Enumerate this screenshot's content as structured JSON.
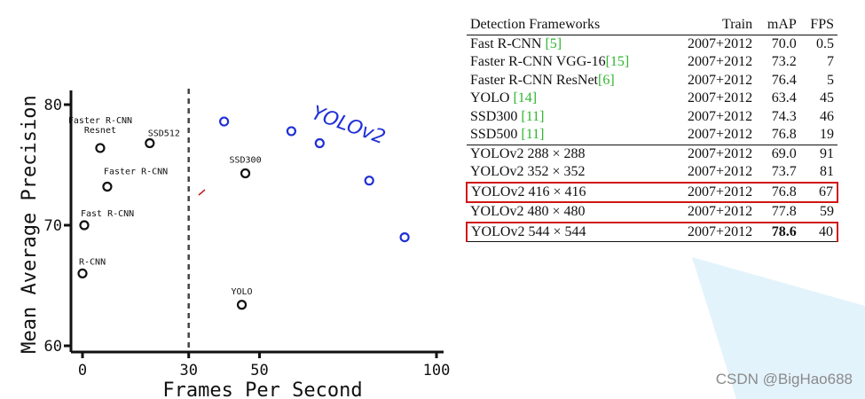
{
  "chart_data": {
    "type": "scatter",
    "ylabel": "Mean Average Precision",
    "xlabel": "Frames Per Second",
    "xlim": [
      0,
      100
    ],
    "ylim": [
      60,
      80
    ],
    "xticks": [
      0,
      30,
      50,
      100
    ],
    "yticks": [
      60,
      70,
      80
    ],
    "reference_line_x": 30,
    "grid": false,
    "annotation": "YOLOv2",
    "series": [
      {
        "color": "#111111",
        "points": [
          {
            "x": 0.5,
            "y": 70.0,
            "label": "Fast R-CNN"
          },
          {
            "x": 0,
            "y": 66.0,
            "label": "R-CNN"
          },
          {
            "x": 7,
            "y": 73.2,
            "label": "Faster R-CNN"
          },
          {
            "x": 5,
            "y": 76.4,
            "label": "Faster R-CNN\nResnet"
          },
          {
            "x": 19,
            "y": 76.8,
            "label": "SSD512"
          },
          {
            "x": 46,
            "y": 74.3,
            "label": "SSD300"
          },
          {
            "x": 45,
            "y": 63.4,
            "label": "YOLO"
          }
        ]
      },
      {
        "color": "#1f2fd6",
        "points": [
          {
            "x": 40,
            "y": 78.6
          },
          {
            "x": 59,
            "y": 77.8
          },
          {
            "x": 67,
            "y": 76.8
          },
          {
            "x": 81,
            "y": 73.7
          },
          {
            "x": 91,
            "y": 69.0
          }
        ]
      }
    ]
  },
  "table": {
    "headers": [
      "Detection Frameworks",
      "Train",
      "mAP",
      "FPS"
    ],
    "rows": [
      {
        "name": "Fast R-CNN ",
        "cite": "[5]",
        "train": "2007+2012",
        "map": "70.0",
        "fps": "0.5",
        "group_start": false,
        "highlight": false,
        "bold_map": false
      },
      {
        "name": "Faster R-CNN VGG-16",
        "cite": "[15]",
        "train": "2007+2012",
        "map": "73.2",
        "fps": "7",
        "group_start": false,
        "highlight": false,
        "bold_map": false
      },
      {
        "name": "Faster R-CNN ResNet",
        "cite": "[6]",
        "train": "2007+2012",
        "map": "76.4",
        "fps": "5",
        "group_start": false,
        "highlight": false,
        "bold_map": false
      },
      {
        "name": "YOLO ",
        "cite": "[14]",
        "train": "2007+2012",
        "map": "63.4",
        "fps": "45",
        "group_start": false,
        "highlight": false,
        "bold_map": false
      },
      {
        "name": "SSD300 ",
        "cite": "[11]",
        "train": "2007+2012",
        "map": "74.3",
        "fps": "46",
        "group_start": false,
        "highlight": false,
        "bold_map": false
      },
      {
        "name": "SSD500 ",
        "cite": "[11]",
        "train": "2007+2012",
        "map": "76.8",
        "fps": "19",
        "group_start": false,
        "highlight": false,
        "bold_map": false
      },
      {
        "name": "YOLOv2 288 × 288",
        "cite": "",
        "train": "2007+2012",
        "map": "69.0",
        "fps": "91",
        "group_start": true,
        "highlight": false,
        "bold_map": false
      },
      {
        "name": "YOLOv2 352 × 352",
        "cite": "",
        "train": "2007+2012",
        "map": "73.7",
        "fps": "81",
        "group_start": false,
        "highlight": false,
        "bold_map": false
      },
      {
        "name": "YOLOv2 416 × 416",
        "cite": "",
        "train": "2007+2012",
        "map": "76.8",
        "fps": "67",
        "group_start": false,
        "highlight": true,
        "bold_map": false
      },
      {
        "name": "YOLOv2 480 × 480",
        "cite": "",
        "train": "2007+2012",
        "map": "77.8",
        "fps": "59",
        "group_start": false,
        "highlight": false,
        "bold_map": false
      },
      {
        "name": "YOLOv2 544 × 544",
        "cite": "",
        "train": "2007+2012",
        "map": "78.6",
        "fps": "40",
        "group_start": false,
        "highlight": true,
        "bold_map": true
      }
    ]
  },
  "colors": {
    "citation": "#2fb52f",
    "highlight_box": "#d01515",
    "yolov2_points": "#1f2fd6"
  },
  "watermark": "CSDN @BigHao688"
}
